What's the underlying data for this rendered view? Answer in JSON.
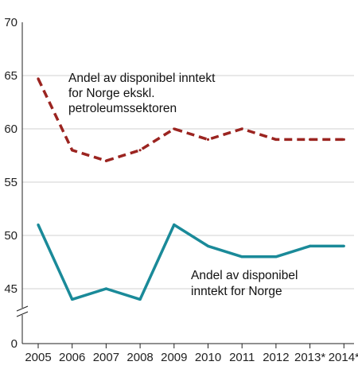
{
  "chart_data": {
    "type": "line",
    "title": "",
    "xlabel": "",
    "ylabel": "",
    "x": [
      "2005",
      "2006",
      "2007",
      "2008",
      "2009",
      "2010",
      "2011",
      "2012",
      "2013*",
      "2014*"
    ],
    "y_ticks": [
      "70",
      "65",
      "60",
      "55",
      "50",
      "45",
      "0"
    ],
    "ylim": [
      43,
      70
    ],
    "axis_break": true,
    "grid": "horizontal",
    "series": [
      {
        "name": "Andel av disponibel inntekt for Norge ekskl. petroleumssektoren",
        "name_lines": [
          "Andel av disponibel inntekt",
          "for Norge ekskl.",
          "petroleumssektoren"
        ],
        "values": [
          64.7,
          58,
          57,
          58,
          60,
          59,
          60,
          59,
          59,
          59
        ],
        "color": "#9b2420",
        "style": "dashed"
      },
      {
        "name": "Andel av disponibel inntekt for Norge",
        "name_lines": [
          "Andel av disponibel",
          "inntekt for Norge"
        ],
        "values": [
          51,
          44,
          45,
          44,
          51,
          49,
          48,
          48,
          49,
          49
        ],
        "color": "#1a8a99",
        "style": "solid"
      }
    ]
  }
}
